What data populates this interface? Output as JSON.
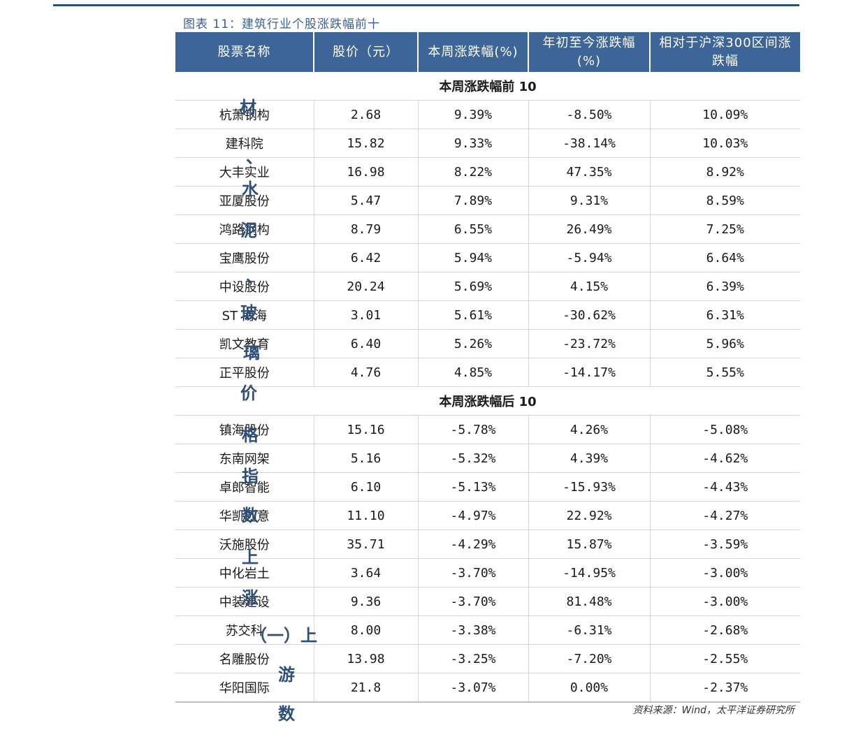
{
  "caption": "图表 11：建筑行业个股涨跌幅前十",
  "columns": [
    "股票名称",
    "股价（元）",
    "本周涨跌幅(%)",
    "年初至今涨跌幅(%)",
    "相对于沪深300区间涨跌幅"
  ],
  "top_section_title": "本周涨跌幅前 10",
  "bottom_section_title": "本周涨跌幅后 10",
  "top_rows": [
    [
      "杭萧钢构",
      "2.68",
      "9.39%",
      "-8.50%",
      "10.09%"
    ],
    [
      "建科院",
      "15.82",
      "9.33%",
      "-38.14%",
      "10.03%"
    ],
    [
      "大丰实业",
      "16.98",
      "8.22%",
      "47.35%",
      "8.92%"
    ],
    [
      "亚厦股份",
      "5.47",
      "7.89%",
      "9.31%",
      "8.59%"
    ],
    [
      "鸿路钢构",
      "8.79",
      "6.55%",
      "26.49%",
      "7.25%"
    ],
    [
      "宝鹰股份",
      "6.42",
      "5.94%",
      "-5.94%",
      "6.64%"
    ],
    [
      "中设股份",
      "20.24",
      "5.69%",
      "4.15%",
      "6.39%"
    ],
    [
      "ST 南海",
      "3.01",
      "5.61%",
      "-30.62%",
      "6.31%"
    ],
    [
      "凯文教育",
      "6.40",
      "5.26%",
      "-23.72%",
      "5.96%"
    ],
    [
      "正平股份",
      "4.76",
      "4.85%",
      "-14.17%",
      "5.55%"
    ]
  ],
  "bottom_rows": [
    [
      "镇海股份",
      "15.16",
      "-5.78%",
      "4.26%",
      "-5.08%"
    ],
    [
      "东南网架",
      "5.16",
      "-5.32%",
      "4.39%",
      "-4.62%"
    ],
    [
      "卓郎智能",
      "6.10",
      "-5.13%",
      "-15.93%",
      "-4.43%"
    ],
    [
      "华凯创意",
      "11.10",
      "-4.97%",
      "22.92%",
      "-4.27%"
    ],
    [
      "沃施股份",
      "35.71",
      "-4.29%",
      "15.87%",
      "-3.59%"
    ],
    [
      "中化岩土",
      "3.64",
      "-3.70%",
      "-14.95%",
      "-3.00%"
    ],
    [
      "中装建设",
      "9.36",
      "-3.70%",
      "81.48%",
      "-3.00%"
    ],
    [
      "苏交科",
      "8.00",
      "-3.38%",
      "-6.31%",
      "-2.68%"
    ],
    [
      "名雕股份",
      "13.98",
      "-3.25%",
      "-7.20%",
      "-2.55%"
    ],
    [
      "华阳国际",
      "21.8",
      "-3.07%",
      "0.00%",
      "-2.37%"
    ]
  ],
  "source": "资料来源：Wind，太平洋证券研究所",
  "overlay_chars": [
    "材",
    "、",
    "水",
    "泥",
    "、",
    "玻",
    "璃",
    "价",
    "格",
    "指",
    "数",
    "上",
    "涨",
    "（一）上",
    "游",
    "数"
  ]
}
